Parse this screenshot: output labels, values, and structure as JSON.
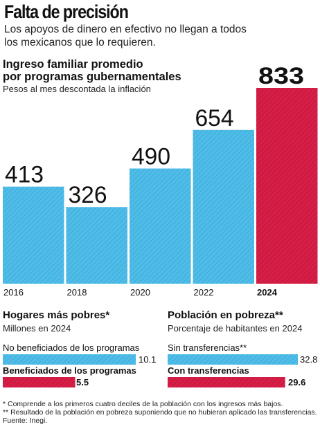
{
  "headline": "Falta de precisión",
  "subhead": [
    "Los apoyos de dinero en efectivo no llegan a todos",
    "los mexicanos que lo requieren."
  ],
  "colors": {
    "blue": "#4fbde8",
    "red": "#d81e46",
    "hatch": "#2f8fbf"
  },
  "chart_data": [
    {
      "type": "bar",
      "title": "Ingreso familiar promedio por programas gubernamentales",
      "title_lines": [
        "Ingreso familiar promedio",
        "por programas gubernamentales"
      ],
      "subtitle": "Pesos al mes descontada la inflación",
      "categories": [
        "2016",
        "2018",
        "2020",
        "2022",
        "2024"
      ],
      "values": [
        413,
        326,
        490,
        654,
        833
      ],
      "highlight": "2024",
      "ylim": [
        0,
        833
      ]
    },
    {
      "type": "bar",
      "orientation": "horizontal",
      "title": "Hogares más pobres*",
      "subtitle": "Millones en 2024",
      "categories": [
        "No beneficiados de los programas",
        "Beneficiados de los programas"
      ],
      "values": [
        10.1,
        5.5
      ],
      "value_labels": [
        "10.1",
        "5.5"
      ],
      "xlim": [
        0,
        10.1
      ]
    },
    {
      "type": "bar",
      "orientation": "horizontal",
      "title": "Población en pobreza**",
      "subtitle": "Porcentaje de habitantes en 2024",
      "categories": [
        "Sin transferencias**",
        "Con transferencias"
      ],
      "values": [
        32.8,
        29.6
      ],
      "value_labels": [
        "32.8",
        "29.6"
      ],
      "xlim": [
        0,
        32.8
      ]
    }
  ],
  "footnotes": [
    "* Comprende a los primeros cuatro deciles de la población con los ingresos más bajos.",
    "** Resultado de la población en pobreza suponiendo que no hubieran aplicado las transferencias.",
    "Fuente: Inegi."
  ]
}
